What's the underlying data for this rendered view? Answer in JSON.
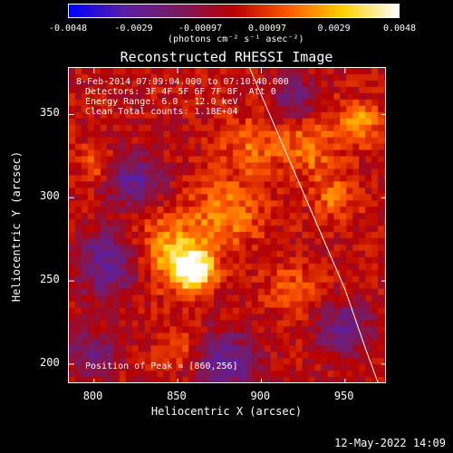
{
  "colorbar": {
    "tick_labels": [
      "-0.0048",
      "-0.0029",
      "-0.00097",
      "0.00097",
      "0.0029",
      "0.0048"
    ],
    "tick_values": [
      -0.0048,
      -0.0029,
      -0.00097,
      0.00097,
      0.0029,
      0.0048
    ],
    "range": [
      -0.0048,
      0.0048
    ],
    "unit_text": "(photons cm⁻² s⁻¹ asec⁻²)",
    "colors": [
      "#0000ff",
      "#5a1fa6",
      "#7a1a60",
      "#b80000",
      "#ff5a00",
      "#ffd200",
      "#ffffff"
    ]
  },
  "title": "Reconstructed RHESSI Image",
  "annotations": {
    "time_range": "8-Feb-2014 07:09:04.000 to 07:10:40.000",
    "detectors": "Detectors: 3F 4F 5F 6F 7F 8F, Att 0",
    "energy": "Energy Range: 6.0 - 12.0 keV",
    "clean_counts": "Clean    Total counts: 1.18E+04",
    "peak": "Position of Peak = [860,256]"
  },
  "chart_data": {
    "type": "heatmap",
    "title": "Reconstructed RHESSI Image",
    "xlabel": "Heliocentric X (arcsec)",
    "ylabel": "Heliocentric Y (arcsec)",
    "xlim": [
      785,
      975
    ],
    "ylim": [
      188,
      378
    ],
    "x_ticks": [
      800,
      850,
      900,
      950
    ],
    "y_ticks": [
      200,
      250,
      300,
      350
    ],
    "peak": [
      860,
      256
    ],
    "sources": [
      {
        "x": 860,
        "y": 256,
        "amp": 1.0,
        "w": 12
      },
      {
        "x": 845,
        "y": 268,
        "amp": 0.55,
        "w": 22
      },
      {
        "x": 880,
        "y": 290,
        "amp": 0.45,
        "w": 20
      },
      {
        "x": 895,
        "y": 330,
        "amp": 0.35,
        "w": 18
      },
      {
        "x": 930,
        "y": 330,
        "amp": 0.4,
        "w": 18
      },
      {
        "x": 960,
        "y": 345,
        "amp": 0.5,
        "w": 12
      },
      {
        "x": 945,
        "y": 300,
        "amp": 0.35,
        "w": 14
      },
      {
        "x": 920,
        "y": 245,
        "amp": 0.3,
        "w": 16
      },
      {
        "x": 800,
        "y": 320,
        "amp": 0.3,
        "w": 10
      },
      {
        "x": 850,
        "y": 210,
        "amp": 0.25,
        "w": 12
      },
      {
        "x": 810,
        "y": 260,
        "amp": -0.6,
        "w": 20
      },
      {
        "x": 825,
        "y": 310,
        "amp": -0.55,
        "w": 16
      },
      {
        "x": 880,
        "y": 200,
        "amp": -0.6,
        "w": 18
      },
      {
        "x": 950,
        "y": 220,
        "amp": -0.5,
        "w": 16
      },
      {
        "x": 920,
        "y": 360,
        "amp": -0.4,
        "w": 14
      },
      {
        "x": 800,
        "y": 205,
        "amp": -0.45,
        "w": 14
      }
    ],
    "limb_curve": {
      "x": [
        893,
        905,
        920,
        935,
        950,
        962,
        970
      ],
      "y": [
        378,
        350,
        315,
        280,
        245,
        210,
        188
      ]
    }
  },
  "footer": "12-May-2022 14:09"
}
